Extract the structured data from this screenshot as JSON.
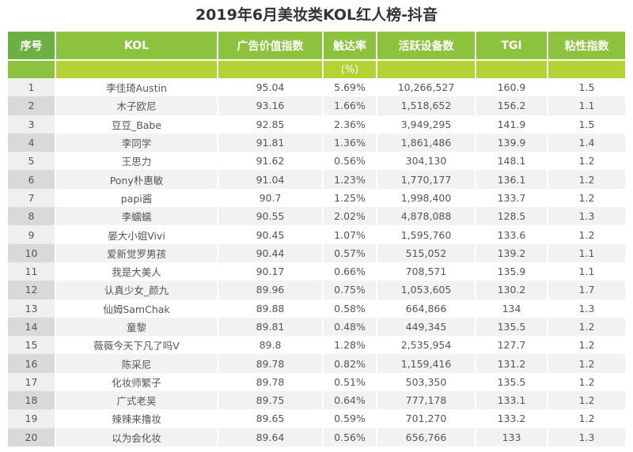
{
  "title": "2019年6月美妆类KOL红人榜-抖音",
  "colors": {
    "header_primary": "#8dc23e",
    "header_seq": "#6cb044",
    "subheader": "#b3d234",
    "subheader_seq": "#8dc23e",
    "row_alt": "#f2f2f2",
    "seq_odd": "#efefef",
    "seq_even": "#d9d9d9"
  },
  "table": {
    "headers": [
      "序号",
      "KOL",
      "广告价值指数",
      "触达率",
      "活跃设备数",
      "TGI",
      "粘性指数"
    ],
    "subheaders": [
      "",
      "",
      "",
      "(%)",
      "",
      "",
      ""
    ],
    "rows": [
      [
        "1",
        "李佳琦Austin",
        "95.04",
        "5.69%",
        "10,266,527",
        "160.9",
        "1.5"
      ],
      [
        "2",
        "木子欧尼",
        "93.16",
        "1.66%",
        "1,518,652",
        "156.2",
        "1.1"
      ],
      [
        "3",
        "豆豆_Babe",
        "92.85",
        "2.36%",
        "3,949,295",
        "141.9",
        "1.5"
      ],
      [
        "4",
        "李同学",
        "91.81",
        "1.36%",
        "1,861,486",
        "139.9",
        "1.4"
      ],
      [
        "5",
        "王思力",
        "91.62",
        "0.56%",
        "304,130",
        "148.1",
        "1.2"
      ],
      [
        "6",
        "Pony朴惠敏",
        "91.04",
        "1.23%",
        "1,770,177",
        "136.1",
        "1.2"
      ],
      [
        "7",
        "papi酱",
        "90.7",
        "1.25%",
        "1,998,400",
        "133.7",
        "1.2"
      ],
      [
        "8",
        "李蠕蠕",
        "90.55",
        "2.02%",
        "4,878,088",
        "128.5",
        "1.3"
      ],
      [
        "9",
        "晏大小姐Vivi",
        "90.45",
        "1.07%",
        "1,595,760",
        "133.6",
        "1.2"
      ],
      [
        "10",
        "爱新觉罗男孩",
        "90.44",
        "0.57%",
        "515,052",
        "139.2",
        "1.1"
      ],
      [
        "11",
        "我是大美人",
        "90.17",
        "0.66%",
        "708,571",
        "135.9",
        "1.1"
      ],
      [
        "12",
        "认真少女_颜九",
        "89.96",
        "0.75%",
        "1,053,605",
        "130.2",
        "1.7"
      ],
      [
        "13",
        "仙姆SamChak",
        "89.88",
        "0.58%",
        "664,866",
        "134",
        "1.3"
      ],
      [
        "14",
        "童黎",
        "89.81",
        "0.48%",
        "449,345",
        "135.5",
        "1.2"
      ],
      [
        "15",
        "薇薇今天下凡了吗V",
        "89.8",
        "1.28%",
        "2,535,954",
        "127.7",
        "1.2"
      ],
      [
        "16",
        "陈采尼",
        "89.78",
        "0.82%",
        "1,159,416",
        "131.2",
        "1.2"
      ],
      [
        "17",
        "化妆师繁子",
        "89.78",
        "0.51%",
        "503,350",
        "135.5",
        "1.2"
      ],
      [
        "18",
        "广式老吴",
        "89.75",
        "0.64%",
        "777,178",
        "133.1",
        "1.2"
      ],
      [
        "19",
        "辣辣来撸妆",
        "89.65",
        "0.59%",
        "701,270",
        "133.2",
        "1.2"
      ],
      [
        "20",
        "以为会化妆",
        "89.64",
        "0.56%",
        "656,766",
        "133",
        "1.3"
      ]
    ]
  }
}
